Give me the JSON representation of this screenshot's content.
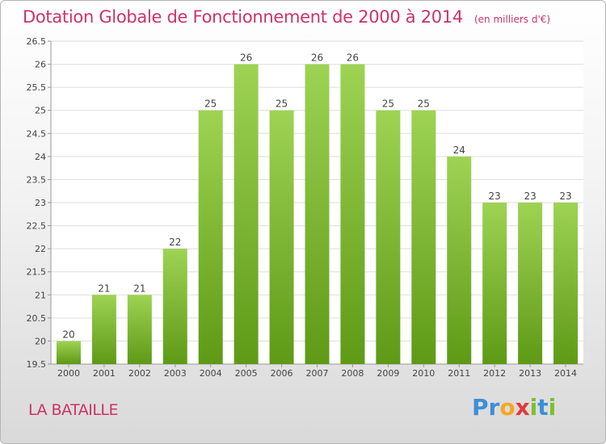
{
  "title": "Dotation Globale de Fonctionnement de 2000 à 2014",
  "unit": "(en milliers d'€)",
  "commune": "LA BATAILLE",
  "logo": {
    "letters": [
      "P",
      "r",
      "o",
      "x",
      "i",
      "t",
      "i"
    ],
    "colors": [
      "#3b8fd8",
      "#3b8fd8",
      "#f5a623",
      "#e03a3a",
      "#7cbf2e",
      "#3b8fd8",
      "#7cbf2e"
    ]
  },
  "colors": {
    "bar_top": "#9ed353",
    "bar_bottom": "#5e9a16",
    "grid": "#dddddd"
  },
  "chart_data": {
    "type": "bar",
    "categories": [
      "2000",
      "2001",
      "2002",
      "2003",
      "2004",
      "2005",
      "2006",
      "2007",
      "2008",
      "2009",
      "2010",
      "2011",
      "2012",
      "2013",
      "2014"
    ],
    "values": [
      20,
      21,
      21,
      22,
      25,
      26,
      25,
      26,
      26,
      25,
      25,
      24,
      23,
      23,
      23
    ],
    "yticks": [
      "19.5",
      "20",
      "20.5",
      "21",
      "21.5",
      "22",
      "22.5",
      "23",
      "23.5",
      "24",
      "24.5",
      "25",
      "25.5",
      "26",
      "26.5"
    ],
    "ylim": [
      19.5,
      26.5
    ],
    "grid": true
  }
}
